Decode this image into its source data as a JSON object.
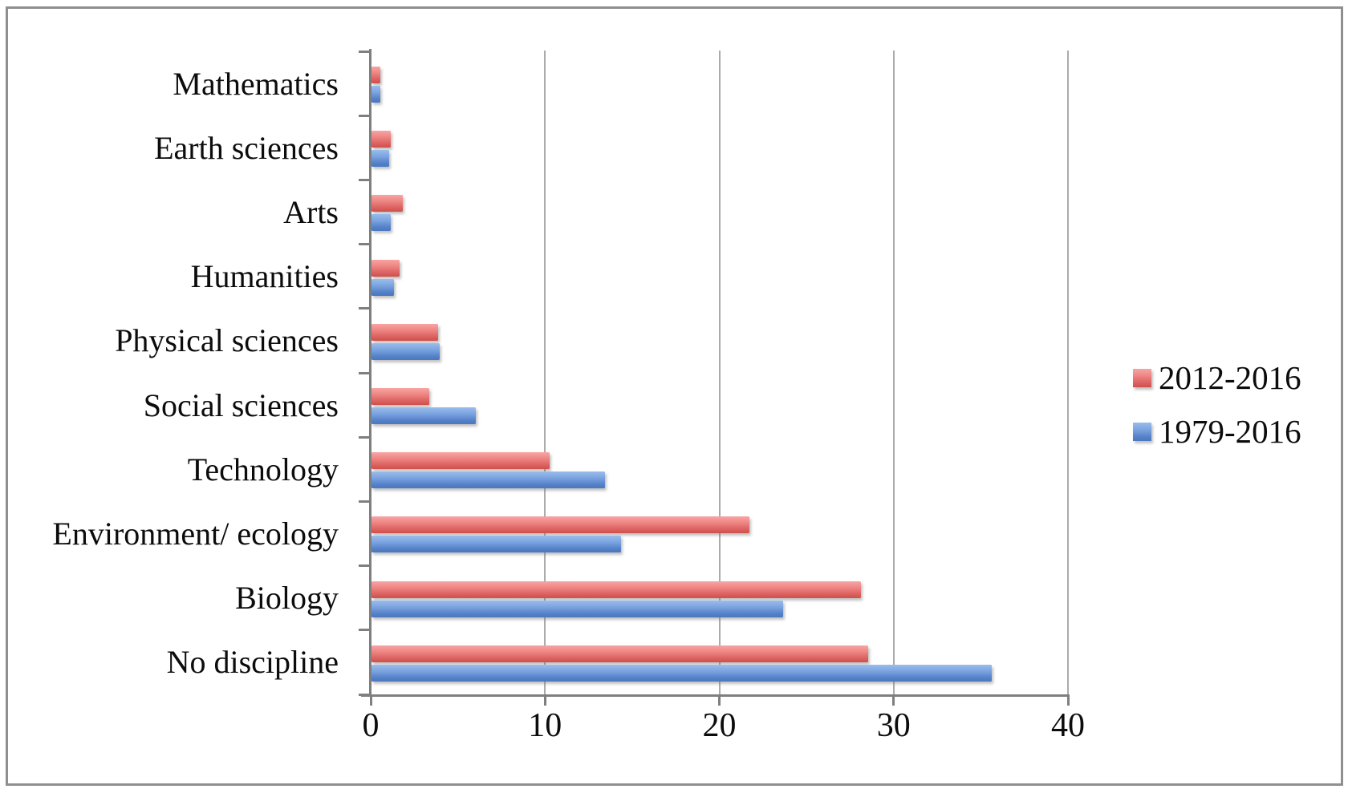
{
  "chart_data": {
    "type": "bar",
    "orientation": "horizontal",
    "title": "",
    "xlabel": "",
    "ylabel": "",
    "categories": [
      "Mathematics",
      "Earth sciences",
      "Arts",
      "Humanities",
      "Physical sciences",
      "Social sciences",
      "Technology",
      "Environment/ ecology",
      "Biology",
      "No discipline"
    ],
    "series": [
      {
        "name": "2012-2016",
        "color": "#DC6361",
        "values": [
          0.5,
          1.1,
          1.8,
          1.6,
          3.8,
          3.3,
          10.2,
          21.7,
          28.1,
          28.5
        ]
      },
      {
        "name": "1979-2016",
        "color": "#5B87CC",
        "values": [
          0.5,
          1.0,
          1.1,
          1.3,
          3.9,
          6.0,
          13.4,
          14.3,
          23.6,
          35.6
        ]
      }
    ],
    "x_ticks": [
      0,
      10,
      20,
      30,
      40
    ],
    "xlim": [
      0,
      40
    ],
    "grid": true,
    "gridline_color": "#ABABAB",
    "axis_color": "#7F7F7F",
    "legend_position": "right"
  }
}
